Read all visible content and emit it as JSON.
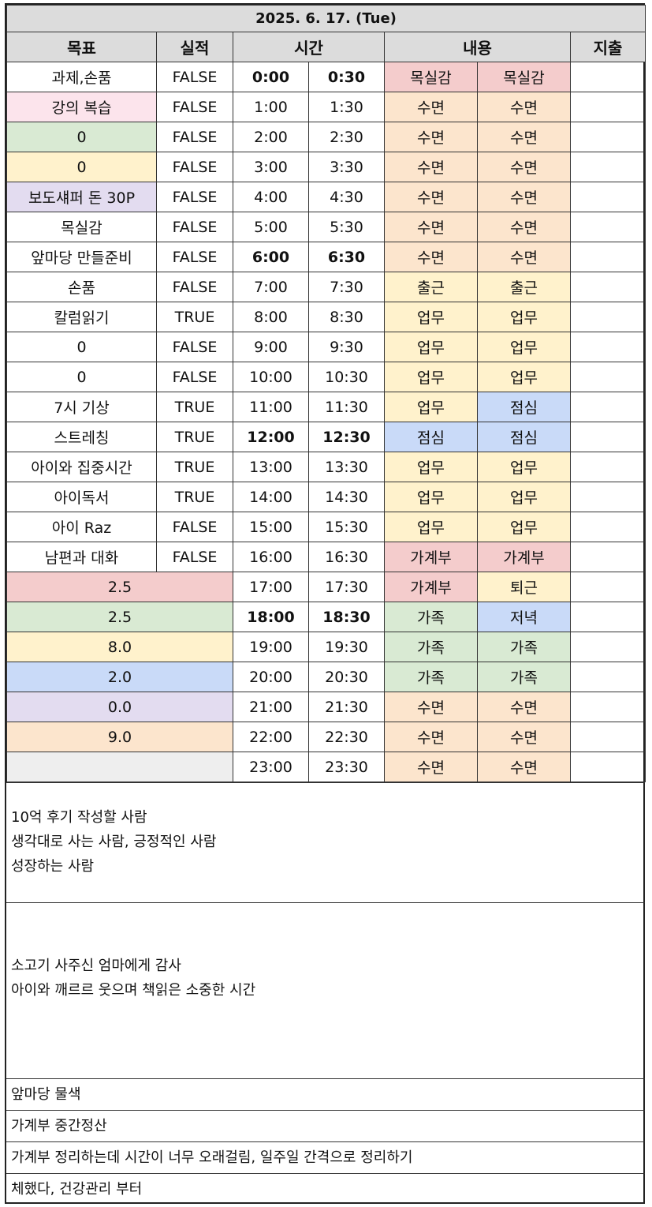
{
  "title": "2025. 6. 17. (Tue)",
  "headers": {
    "goal": "목표",
    "result": "실적",
    "time": "시간",
    "content": "내용",
    "expense": "지출"
  },
  "rows": [
    {
      "goal": "과제,손품",
      "result": "FALSE",
      "t1": "0:00",
      "t2": "0:30",
      "c1": "목실감",
      "c2": "목실감"
    },
    {
      "goal": "강의 복습",
      "result": "FALSE",
      "t1": "1:00",
      "t2": "1:30",
      "c1": "수면",
      "c2": "수면"
    },
    {
      "goal": "0",
      "result": "FALSE",
      "t1": "2:00",
      "t2": "2:30",
      "c1": "수면",
      "c2": "수면"
    },
    {
      "goal": "0",
      "result": "FALSE",
      "t1": "3:00",
      "t2": "3:30",
      "c1": "수면",
      "c2": "수면"
    },
    {
      "goal": "보도섀퍼 돈 30P",
      "result": "FALSE",
      "t1": "4:00",
      "t2": "4:30",
      "c1": "수면",
      "c2": "수면"
    },
    {
      "goal": "목실감",
      "result": "FALSE",
      "t1": "5:00",
      "t2": "5:30",
      "c1": "수면",
      "c2": "수면"
    },
    {
      "goal": "앞마당 만들준비",
      "result": "FALSE",
      "t1": "6:00",
      "t2": "6:30",
      "c1": "수면",
      "c2": "수면"
    },
    {
      "goal": "손품",
      "result": "FALSE",
      "t1": "7:00",
      "t2": "7:30",
      "c1": "출근",
      "c2": "출근"
    },
    {
      "goal": "칼럼읽기",
      "result": "TRUE",
      "t1": "8:00",
      "t2": "8:30",
      "c1": "업무",
      "c2": "업무"
    },
    {
      "goal": "0",
      "result": "FALSE",
      "t1": "9:00",
      "t2": "9:30",
      "c1": "업무",
      "c2": "업무"
    },
    {
      "goal": "0",
      "result": "FALSE",
      "t1": "10:00",
      "t2": "10:30",
      "c1": "업무",
      "c2": "업무"
    },
    {
      "goal": "7시 기상",
      "result": "TRUE",
      "t1": "11:00",
      "t2": "11:30",
      "c1": "업무",
      "c2": "점심"
    },
    {
      "goal": "스트레칭",
      "result": "TRUE",
      "t1": "12:00",
      "t2": "12:30",
      "c1": "점심",
      "c2": "점심"
    },
    {
      "goal": "아이와 집중시간",
      "result": "TRUE",
      "t1": "13:00",
      "t2": "13:30",
      "c1": "업무",
      "c2": "업무"
    },
    {
      "goal": "아이독서",
      "result": "TRUE",
      "t1": "14:00",
      "t2": "14:30",
      "c1": "업무",
      "c2": "업무"
    },
    {
      "goal": "아이 Raz",
      "result": "FALSE",
      "t1": "15:00",
      "t2": "15:30",
      "c1": "업무",
      "c2": "업무"
    },
    {
      "goal": "남편과 대화",
      "result": "FALSE",
      "t1": "16:00",
      "t2": "16:30",
      "c1": "가계부",
      "c2": "가계부"
    },
    {
      "summary": "2.5",
      "t1": "17:00",
      "t2": "17:30",
      "c1": "가계부",
      "c2": "퇴근"
    },
    {
      "summary": "2.5",
      "t1": "18:00",
      "t2": "18:30",
      "c1": "가족",
      "c2": "저녁"
    },
    {
      "summary": "8.0",
      "t1": "19:00",
      "t2": "19:30",
      "c1": "가족",
      "c2": "가족"
    },
    {
      "summary": "2.0",
      "t1": "20:00",
      "t2": "20:30",
      "c1": "가족",
      "c2": "가족"
    },
    {
      "summary": "0.0",
      "t1": "21:00",
      "t2": "21:30",
      "c1": "수면",
      "c2": "수면"
    },
    {
      "summary": "9.0",
      "t1": "22:00",
      "t2": "22:30",
      "c1": "수면",
      "c2": "수면"
    },
    {
      "summary": "",
      "t1": "23:00",
      "t2": "23:30",
      "c1": "수면",
      "c2": "수면"
    }
  ],
  "notes": {
    "block1": [
      "10억 후기 작성할 사람",
      "생각대로 사는 사람, 긍정적인 사람",
      "성장하는 사람"
    ],
    "block2": [
      "소고기 사주신 엄마에게 감사",
      "아이와 깨르르 웃으며 책읽은 소중한 시간"
    ],
    "line1": "앞마당 물색",
    "line2": "가계부 중간정산",
    "line3": "가계부 정리하는데 시간이 너무 오래걸림, 일주일 간격으로 정리하기",
    "line4": "체했다, 건강관리 부터"
  },
  "colors": {
    "white": "#ffffff",
    "header_gray": "#dcdcdc",
    "pink": "#f4cccc",
    "light_pink": "#fce4ec",
    "green": "#d9ead3",
    "yellow": "#fff2cc",
    "purple": "#e3dcf0",
    "blue": "#c9daf8",
    "orange": "#fce5cd",
    "light_gray": "#eeeeee"
  }
}
